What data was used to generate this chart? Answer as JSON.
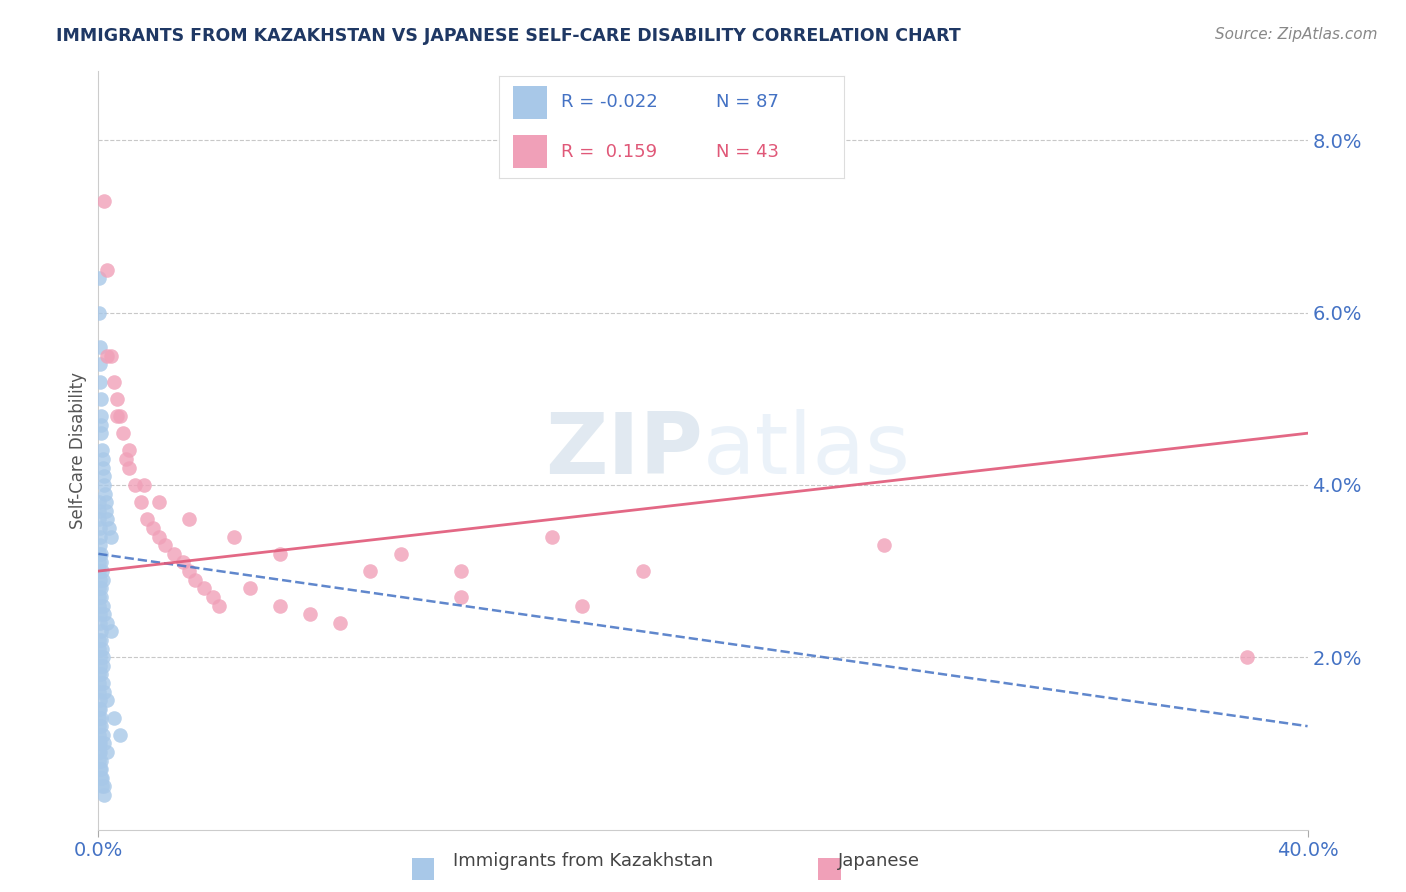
{
  "title": "IMMIGRANTS FROM KAZAKHSTAN VS JAPANESE SELF-CARE DISABILITY CORRELATION CHART",
  "source": "Source: ZipAtlas.com",
  "ylabel": "Self-Care Disability",
  "ylabel_right_ticks": [
    "8.0%",
    "6.0%",
    "4.0%",
    "2.0%"
  ],
  "ylabel_right_vals": [
    0.08,
    0.06,
    0.04,
    0.02
  ],
  "xmin": 0.0,
  "xmax": 0.4,
  "ymin": 0.0,
  "ymax": 0.088,
  "color_blue": "#A8C8E8",
  "color_pink": "#F0A0B8",
  "color_blue_line": "#4472C4",
  "color_pink_line": "#E05878",
  "color_axis_labels": "#4472C4",
  "color_title": "#1F3864",
  "color_source": "#888888",
  "color_grid": "#C8C8C8",
  "blue_line_x0": 0.0,
  "blue_line_x1": 0.4,
  "blue_line_y0": 0.032,
  "blue_line_y1": 0.012,
  "pink_line_x0": 0.0,
  "pink_line_x1": 0.4,
  "pink_line_y0": 0.03,
  "pink_line_y1": 0.046,
  "blue_scatter_x": [
    0.0002,
    0.0003,
    0.0004,
    0.0005,
    0.0006,
    0.0007,
    0.0008,
    0.0009,
    0.001,
    0.0012,
    0.0014,
    0.0016,
    0.0018,
    0.002,
    0.0022,
    0.0024,
    0.0026,
    0.003,
    0.0035,
    0.004,
    0.0001,
    0.0002,
    0.0003,
    0.0004,
    0.0005,
    0.0006,
    0.0008,
    0.001,
    0.0012,
    0.0015,
    0.0001,
    0.0002,
    0.0003,
    0.0005,
    0.0007,
    0.001,
    0.0015,
    0.002,
    0.003,
    0.004,
    0.0001,
    0.0002,
    0.0003,
    0.0004,
    0.0006,
    0.0008,
    0.001,
    0.0012,
    0.0014,
    0.0016,
    0.0001,
    0.0002,
    0.0004,
    0.0006,
    0.001,
    0.0015,
    0.002,
    0.003,
    0.005,
    0.007,
    0.0001,
    0.0002,
    0.0003,
    0.0004,
    0.0005,
    0.0007,
    0.001,
    0.0014,
    0.002,
    0.003,
    0.0001,
    0.0001,
    0.0002,
    0.0003,
    0.0004,
    0.0005,
    0.0007,
    0.001,
    0.0013,
    0.0018,
    0.0001,
    0.0002,
    0.0003,
    0.0005,
    0.0008,
    0.0012,
    0.002
  ],
  "blue_scatter_y": [
    0.064,
    0.06,
    0.056,
    0.054,
    0.052,
    0.05,
    0.048,
    0.047,
    0.046,
    0.044,
    0.043,
    0.042,
    0.041,
    0.04,
    0.039,
    0.038,
    0.037,
    0.036,
    0.035,
    0.034,
    0.038,
    0.037,
    0.036,
    0.035,
    0.034,
    0.033,
    0.032,
    0.031,
    0.03,
    0.029,
    0.032,
    0.031,
    0.03,
    0.029,
    0.028,
    0.027,
    0.026,
    0.025,
    0.024,
    0.023,
    0.028,
    0.027,
    0.026,
    0.025,
    0.024,
    0.023,
    0.022,
    0.021,
    0.02,
    0.019,
    0.022,
    0.021,
    0.02,
    0.019,
    0.018,
    0.017,
    0.016,
    0.015,
    0.013,
    0.011,
    0.018,
    0.017,
    0.016,
    0.015,
    0.014,
    0.013,
    0.012,
    0.011,
    0.01,
    0.009,
    0.014,
    0.013,
    0.012,
    0.011,
    0.01,
    0.009,
    0.008,
    0.007,
    0.006,
    0.005,
    0.01,
    0.009,
    0.008,
    0.007,
    0.006,
    0.005,
    0.004
  ],
  "pink_scatter_x": [
    0.002,
    0.003,
    0.004,
    0.005,
    0.006,
    0.007,
    0.008,
    0.009,
    0.01,
    0.012,
    0.014,
    0.016,
    0.018,
    0.02,
    0.022,
    0.025,
    0.028,
    0.03,
    0.032,
    0.035,
    0.038,
    0.04,
    0.05,
    0.06,
    0.07,
    0.08,
    0.1,
    0.12,
    0.15,
    0.18,
    0.003,
    0.006,
    0.01,
    0.015,
    0.02,
    0.03,
    0.045,
    0.06,
    0.09,
    0.12,
    0.16,
    0.38,
    0.26
  ],
  "pink_scatter_y": [
    0.073,
    0.065,
    0.055,
    0.052,
    0.05,
    0.048,
    0.046,
    0.043,
    0.042,
    0.04,
    0.038,
    0.036,
    0.035,
    0.034,
    0.033,
    0.032,
    0.031,
    0.03,
    0.029,
    0.028,
    0.027,
    0.026,
    0.028,
    0.026,
    0.025,
    0.024,
    0.032,
    0.03,
    0.034,
    0.03,
    0.055,
    0.048,
    0.044,
    0.04,
    0.038,
    0.036,
    0.034,
    0.032,
    0.03,
    0.027,
    0.026,
    0.02,
    0.033
  ]
}
